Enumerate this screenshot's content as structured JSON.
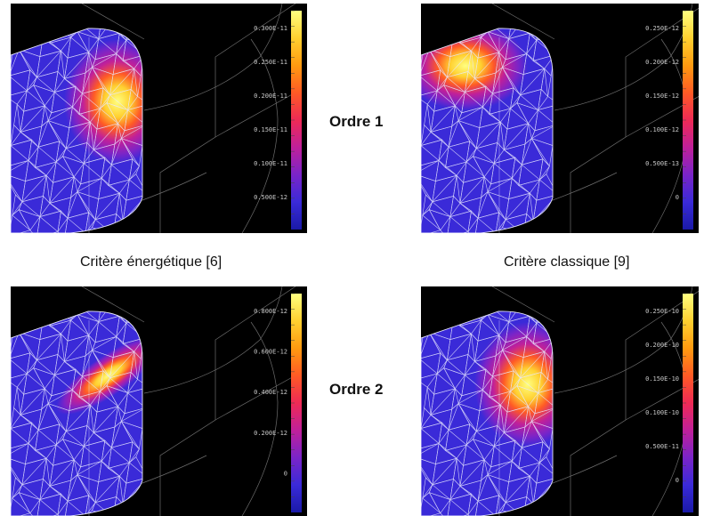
{
  "figure": {
    "captions": {
      "left": "Critère énergétique [6]",
      "right": "Critère classique [9]"
    },
    "orders": {
      "first": "Ordre 1",
      "second": "Ordre 2"
    }
  },
  "panels": {
    "top_left": {
      "criterion": "energetique",
      "order": 1,
      "hotspot": "right-center",
      "colorbar_ticks": [
        "0.300E-11",
        "0.250E-11",
        "0.200E-11",
        "0.150E-11",
        "0.100E-11",
        "0.500E-12"
      ]
    },
    "top_right": {
      "criterion": "classique",
      "order": 1,
      "hotspot": "top-left",
      "colorbar_ticks": [
        "0.250E-12",
        "0.200E-12",
        "0.150E-12",
        "0.100E-12",
        "0.500E-13",
        "0"
      ]
    },
    "bottom_left": {
      "criterion": "energetique",
      "order": 2,
      "hotspot": "diagonal-band",
      "colorbar_ticks": [
        "0.800E-12",
        "0.600E-12",
        "0.400E-12",
        "0.200E-12",
        "0"
      ]
    },
    "bottom_right": {
      "criterion": "classique",
      "order": 2,
      "hotspot": "right-center",
      "colorbar_ticks": [
        "0.250E-10",
        "0.200E-10",
        "0.150E-10",
        "0.100E-10",
        "0.500E-11",
        "0"
      ]
    }
  },
  "colors": {
    "background": "#000000",
    "mesh": "#e8e8ff",
    "colormap": [
      "#1a1aa8",
      "#3a2ad8",
      "#7a24c8",
      "#c0209a",
      "#ee2a55",
      "#ff5a25",
      "#ff9a10",
      "#ffd030",
      "#ffff80"
    ]
  }
}
